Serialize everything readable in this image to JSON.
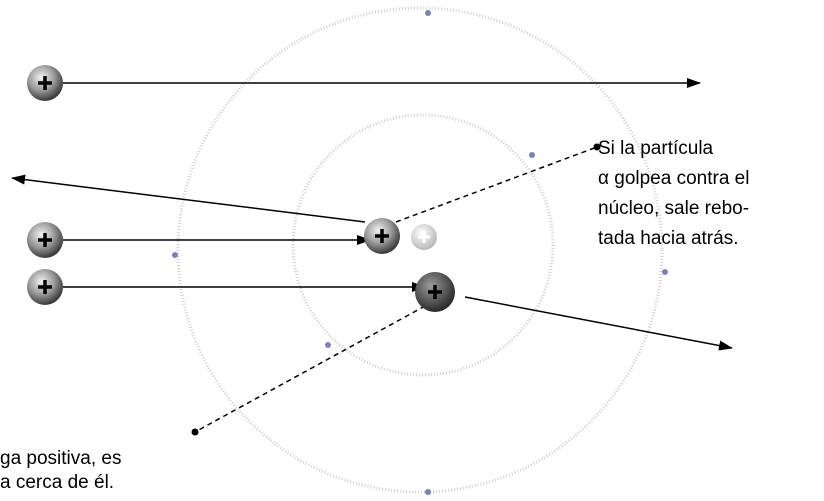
{
  "callouts": [
    {
      "lines": [
        "Si la partícula",
        "α golpea contra el",
        "núcleo, sale rebo-",
        "tada hacia atrás."
      ]
    },
    {
      "lines": [
        "ga positiva, es",
        "a cerca de él."
      ]
    }
  ]
}
